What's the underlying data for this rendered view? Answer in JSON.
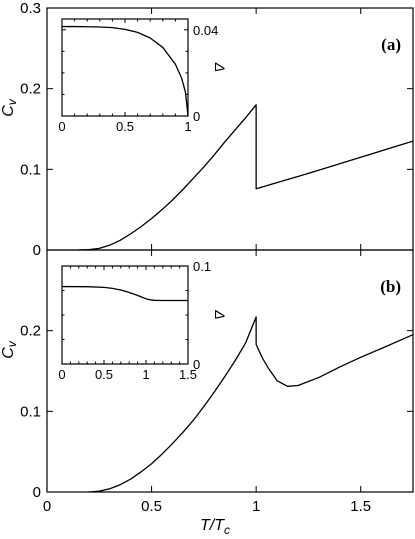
{
  "chart_data": [
    {
      "id": "main-a",
      "type": "line",
      "panel_label": "(a)",
      "ylabel": "C_v",
      "xlabel": "",
      "xlim": [
        0,
        1.75
      ],
      "ylim": [
        0,
        0.3
      ],
      "xticks": [
        0,
        0.5,
        1,
        1.5
      ],
      "yticks": [
        0,
        0.1,
        0.2,
        0.3
      ],
      "ytick_labels": [
        "0",
        "0.1",
        "0.2",
        "0.3"
      ],
      "series": [
        {
          "points": [
            [
              0.15,
              0.0
            ],
            [
              0.2,
              0.0005
            ],
            [
              0.25,
              0.002
            ],
            [
              0.3,
              0.006
            ],
            [
              0.35,
              0.012
            ],
            [
              0.4,
              0.02
            ],
            [
              0.45,
              0.029
            ],
            [
              0.5,
              0.039
            ],
            [
              0.55,
              0.05
            ],
            [
              0.6,
              0.062
            ],
            [
              0.65,
              0.075
            ],
            [
              0.7,
              0.089
            ],
            [
              0.75,
              0.103
            ],
            [
              0.8,
              0.118
            ],
            [
              0.85,
              0.134
            ],
            [
              0.9,
              0.149
            ],
            [
              0.95,
              0.164
            ],
            [
              1.0,
              0.18
            ],
            [
              1.0,
              0.076
            ],
            [
              1.25,
              0.095
            ],
            [
              1.5,
              0.115
            ],
            [
              1.75,
              0.135
            ]
          ]
        }
      ]
    },
    {
      "id": "inset-a",
      "type": "line",
      "ylabel": "Δ",
      "xlim": [
        0,
        1
      ],
      "ylim": [
        0,
        0.045
      ],
      "xticks": [
        0,
        0.5,
        1
      ],
      "xtick_labels": [
        "0",
        "0.5",
        "1"
      ],
      "yticks": [
        0,
        0.04
      ],
      "ytick_labels": [
        "0",
        "0.04"
      ],
      "series": [
        {
          "points": [
            [
              0,
              0.0415
            ],
            [
              0.1,
              0.0415
            ],
            [
              0.2,
              0.0414
            ],
            [
              0.3,
              0.0413
            ],
            [
              0.4,
              0.041
            ],
            [
              0.5,
              0.0402
            ],
            [
              0.6,
              0.0388
            ],
            [
              0.7,
              0.0362
            ],
            [
              0.8,
              0.0318
            ],
            [
              0.9,
              0.024
            ],
            [
              0.95,
              0.0175
            ],
            [
              0.98,
              0.011
            ],
            [
              1.0,
              0.0
            ]
          ]
        }
      ]
    },
    {
      "id": "main-b",
      "type": "line",
      "panel_label": "(b)",
      "ylabel": "C_v",
      "xlabel": "T/T_c",
      "xlim": [
        0,
        1.75
      ],
      "ylim": [
        0,
        0.3
      ],
      "xticks": [
        0,
        0.5,
        1,
        1.5
      ],
      "xtick_labels": [
        "0",
        "0.5",
        "1",
        "1.5"
      ],
      "yticks": [
        0,
        0.1,
        0.2
      ],
      "ytick_labels": [
        "0",
        "0.1",
        "0.2"
      ],
      "series": [
        {
          "points": [
            [
              0.2,
              0.0
            ],
            [
              0.25,
              0.001
            ],
            [
              0.3,
              0.004
            ],
            [
              0.35,
              0.009
            ],
            [
              0.4,
              0.016
            ],
            [
              0.45,
              0.025
            ],
            [
              0.5,
              0.035
            ],
            [
              0.55,
              0.047
            ],
            [
              0.6,
              0.06
            ],
            [
              0.65,
              0.074
            ],
            [
              0.7,
              0.089
            ],
            [
              0.75,
              0.106
            ],
            [
              0.8,
              0.124
            ],
            [
              0.85,
              0.143
            ],
            [
              0.9,
              0.163
            ],
            [
              0.95,
              0.185
            ],
            [
              1.0,
              0.217
            ],
            [
              1.0,
              0.183
            ],
            [
              1.03,
              0.166
            ],
            [
              1.06,
              0.153
            ],
            [
              1.1,
              0.138
            ],
            [
              1.15,
              0.131
            ],
            [
              1.2,
              0.132
            ],
            [
              1.3,
              0.142
            ],
            [
              1.4,
              0.155
            ],
            [
              1.5,
              0.167
            ],
            [
              1.6,
              0.178
            ],
            [
              1.75,
              0.195
            ]
          ]
        }
      ]
    },
    {
      "id": "inset-b",
      "type": "line",
      "ylabel": "Δ",
      "xlim": [
        0,
        1.5
      ],
      "ylim": [
        0,
        0.1
      ],
      "xticks": [
        0,
        0.5,
        1,
        1.5
      ],
      "xtick_labels": [
        "0",
        "0.5",
        "1",
        "1.5"
      ],
      "yticks": [
        0,
        0.1
      ],
      "ytick_labels": [
        "0",
        "0.1"
      ],
      "series": [
        {
          "points": [
            [
              0,
              0.079
            ],
            [
              0.3,
              0.0789
            ],
            [
              0.5,
              0.0782
            ],
            [
              0.6,
              0.0772
            ],
            [
              0.7,
              0.0755
            ],
            [
              0.8,
              0.073
            ],
            [
              0.9,
              0.07
            ],
            [
              0.95,
              0.0682
            ],
            [
              1.0,
              0.0665
            ],
            [
              1.05,
              0.0655
            ],
            [
              1.1,
              0.065
            ],
            [
              1.2,
              0.0648
            ],
            [
              1.5,
              0.0648
            ]
          ]
        }
      ]
    }
  ]
}
